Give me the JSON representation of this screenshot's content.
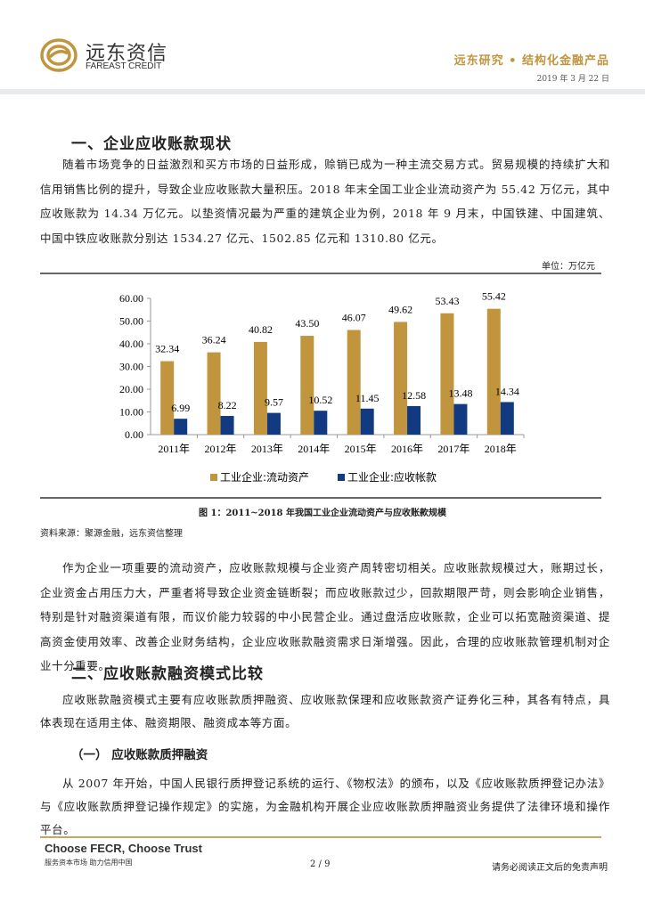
{
  "header": {
    "logo_cn": "远东资信",
    "logo_en": "FAREAST CREDIT",
    "series": "远东研究 • 结构化金融产品",
    "date": "2019 年 3 月 22 日",
    "brand_color": "#c0953e"
  },
  "section1": {
    "title": "一、企业应收账款现状",
    "paragraph": "随着市场竞争的日益激烈和买方市场的日益形成，赊销已成为一种主流交易方式。贸易规模的持续扩大和信用销售比例的提升，导致企业应收账款大量积压。2018 年末全国工业企业流动资产为 55.42 万亿元，其中应收账款为 14.34 万亿元。以垫资情况最为严重的建筑企业为例，2018 年 9 月末，中国铁建、中国建筑、中国中铁应收账款分别达 1534.27 亿元、1502.85 亿元和 1310.80 亿元。"
  },
  "figure": {
    "unit": "单位：万亿元",
    "caption": "图 1：2011~2018 年我国工业企业流动资产与应收账款规模",
    "source": "资料来源：聚源金融，远东资信整理"
  },
  "chart_data": {
    "type": "bar",
    "categories": [
      "2011年",
      "2012年",
      "2013年",
      "2014年",
      "2015年",
      "2016年",
      "2017年",
      "2018年"
    ],
    "series": [
      {
        "name": "工业企业:流动资产",
        "color": "#c0953e",
        "values": [
          32.34,
          36.24,
          40.82,
          43.5,
          46.07,
          49.62,
          53.43,
          55.42
        ],
        "labels": [
          "32.34",
          "36.24",
          "40.82",
          "43.50",
          "46.07",
          "49.62",
          "53.43",
          "55.42"
        ]
      },
      {
        "name": "工业企业:应收帐款",
        "color": "#123a80",
        "values": [
          6.99,
          8.22,
          9.57,
          10.52,
          11.45,
          12.58,
          13.48,
          14.34
        ],
        "labels": [
          "6.99",
          "8.22",
          "9.57",
          "10.52",
          "11.45",
          "12.58",
          "13.48",
          "14.34"
        ]
      }
    ],
    "ylim": [
      0,
      60
    ],
    "yticks": [
      "0.00",
      "10.00",
      "20.00",
      "30.00",
      "40.00",
      "50.00",
      "60.00"
    ],
    "legend": "bottom",
    "grid": false
  },
  "paragraph2": "作为企业一项重要的流动资产，应收账款规模与企业资产周转密切相关。应收账款规模过大，账期过长，企业资金占用压力大，严重者将导致企业资金链断裂；而应收账款过少，回款期限严苛，则会影响企业销售，特别是针对融资渠道有限，而议价能力较弱的中小民营企业。通过盘活应收账款，企业可以拓宽融资渠道、提高资金使用效率、改善企业财务结构，企业应收账款融资需求日渐增强。因此，合理的应收账款管理机制对企业十分重要。",
  "section2": {
    "title": "二、应收账款融资模式比较",
    "paragraph": "应收账款融资模式主要有应收账款质押融资、应收账款保理和应收账款资产证券化三种，其各有特点，具体表现在适用主体、融资期限、融资成本等方面。",
    "sub_title": "（一） 应收账款质押融资",
    "sub_paragraph": "从 2007 年开始，中国人民银行质押登记系统的运行、《物权法》的颁布，以及《应收账款质押登记办法》与《应收账款质押登记操作规定》的实施，为金融机构开展企业应收账款质押融资业务提供了法律环境和操作平台。"
  },
  "footer": {
    "slogan": "Choose FECR, Choose Trust",
    "tagline": "服务资本市场  助力信用中国",
    "page": "2 / 9",
    "disclaimer": "请务必阅读正文后的免责声明"
  }
}
